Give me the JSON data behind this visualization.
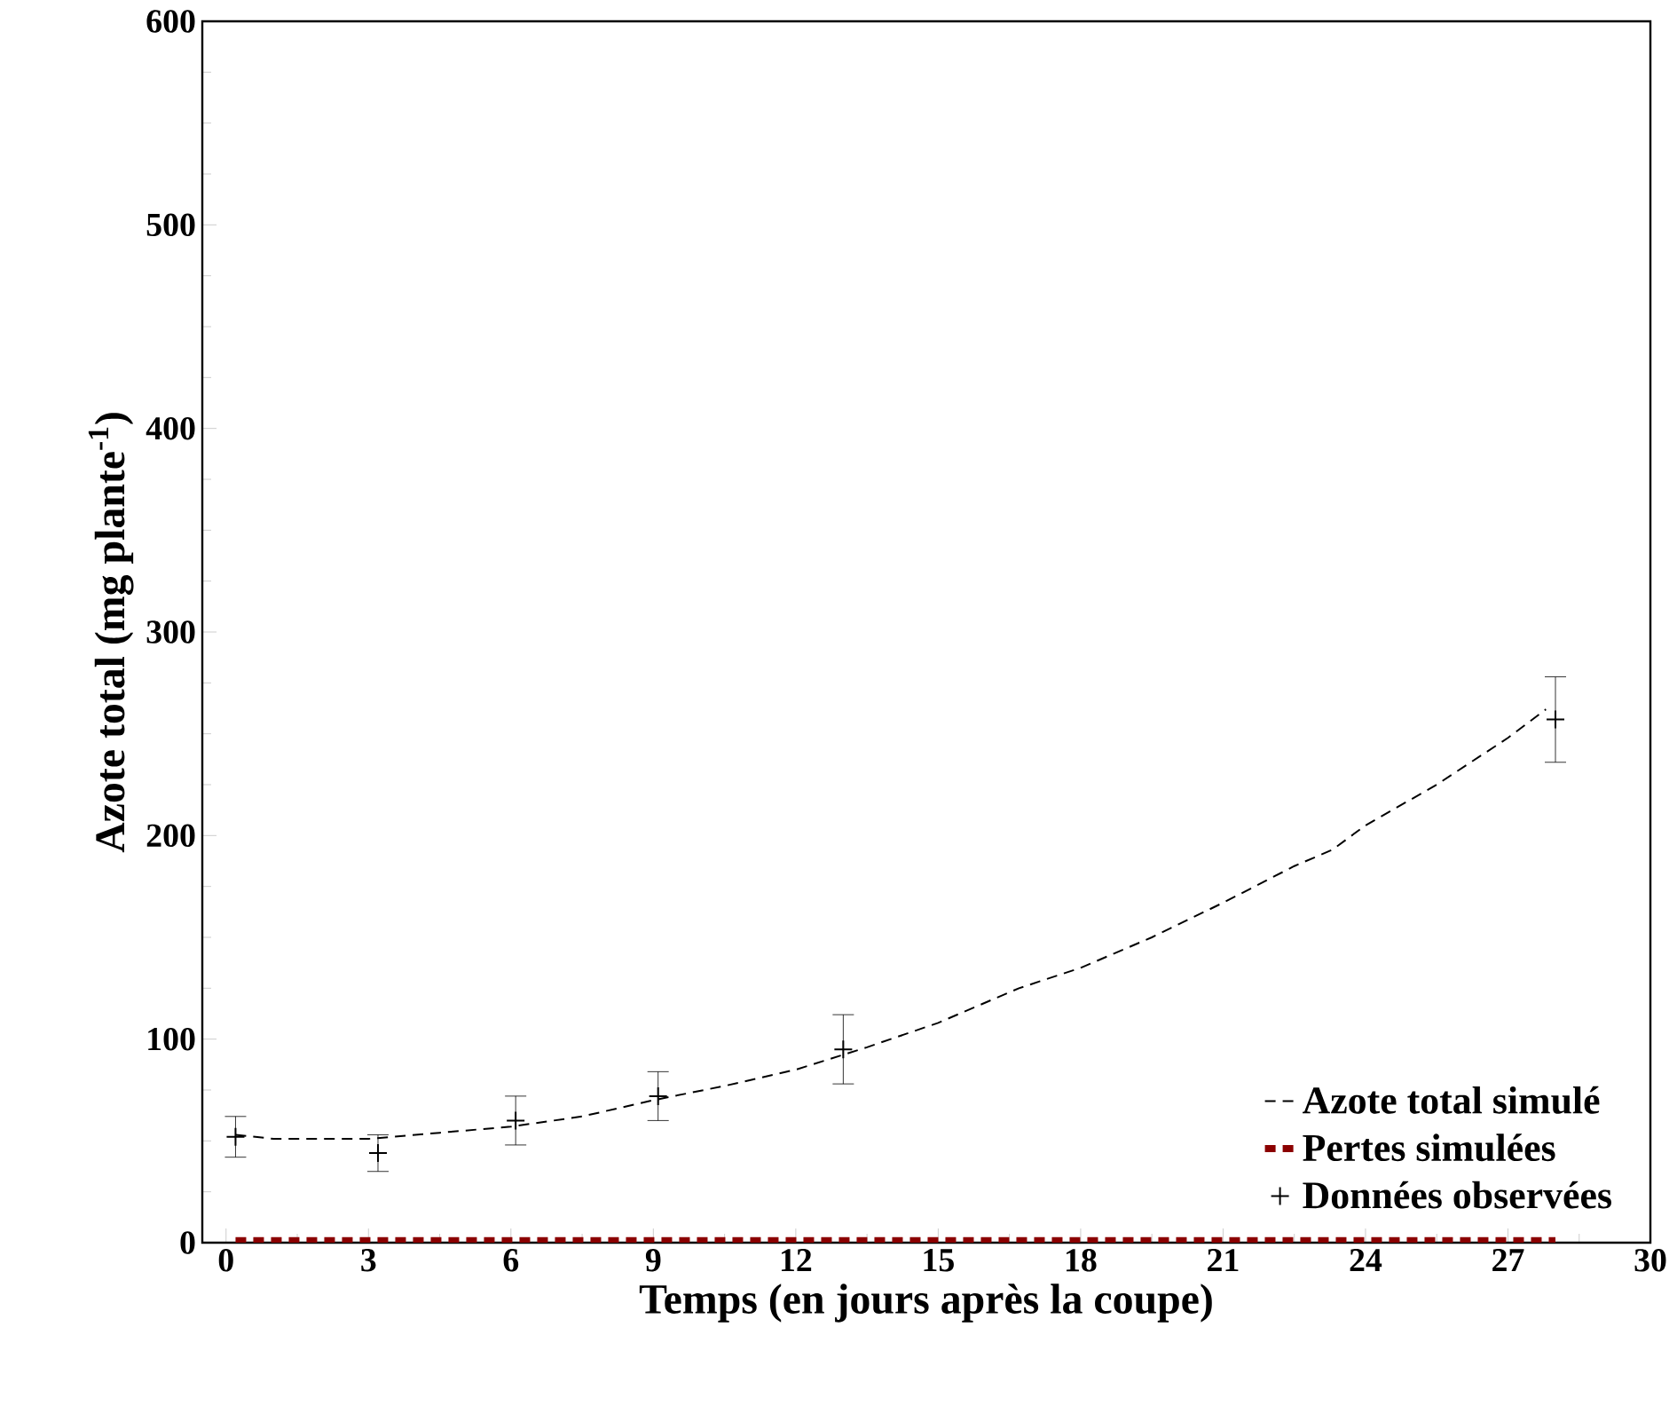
{
  "chart_data": {
    "type": "line",
    "xlabel": "Temps (en jours après la coupe)",
    "ylabel": "Azote total (mg plante$^{-1}$)",
    "xlim": [
      -0.5,
      30
    ],
    "ylim": [
      0,
      600
    ],
    "xticks": [
      0,
      3,
      6,
      9,
      12,
      15,
      18,
      21,
      24,
      27,
      30
    ],
    "yticks": [
      0,
      100,
      200,
      300,
      400,
      500,
      600
    ],
    "grid": false,
    "legend": "bottom right",
    "series": [
      {
        "name": "Azote total simulé",
        "color": "#000000",
        "line_style": "dashed",
        "marker": "none",
        "x": [
          0.2,
          1,
          2,
          3,
          4.5,
          6,
          7.5,
          9,
          10.5,
          12,
          13.5,
          15,
          16.7,
          18,
          19.5,
          21,
          22.5,
          23.3,
          24,
          25.5,
          27,
          27.8
        ],
        "values": [
          53,
          51,
          51,
          51,
          54,
          57,
          62,
          70,
          77,
          85,
          96,
          108,
          125,
          135,
          150,
          167,
          185,
          193,
          205,
          225,
          248,
          262
        ]
      },
      {
        "name": "Pertes simulées",
        "color": "#8b0000",
        "line_style": "dashed",
        "marker": "none",
        "x": [
          0.2,
          28
        ],
        "values": [
          1,
          1
        ]
      },
      {
        "name": "Données observées",
        "type": "scatter",
        "color": "#000000",
        "marker": "cross",
        "x": [
          0.2,
          3.2,
          6.1,
          9.1,
          13,
          28
        ],
        "values": [
          52,
          44,
          60,
          72,
          95,
          257
        ],
        "errors": [
          10,
          9,
          12,
          12,
          17,
          21
        ]
      }
    ]
  }
}
